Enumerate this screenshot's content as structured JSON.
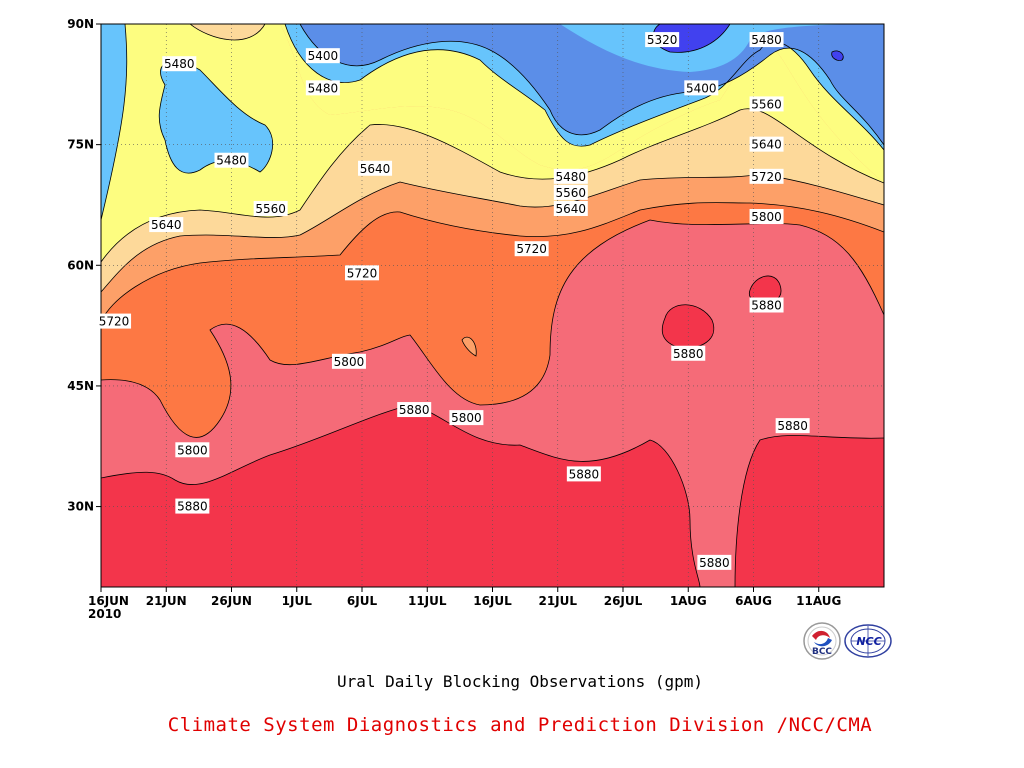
{
  "chart_data": {
    "type": "heatmap",
    "title": "Ural Daily Blocking Observations (gpm)",
    "x_ticks": [
      "16JUN\n2010",
      "21JUN",
      "26JUN",
      "1JUL",
      "6JUL",
      "11JUL",
      "16JUL",
      "21JUL",
      "26JUL",
      "1AUG",
      "6AUG",
      "11AUG"
    ],
    "x_range": [
      "2010-06-16",
      "2010-08-15"
    ],
    "y_ticks": [
      "30N",
      "45N",
      "60N",
      "75N",
      "90N"
    ],
    "y_range": [
      20,
      90
    ],
    "contour_levels": [
      5320,
      5400,
      5480,
      5560,
      5640,
      5720,
      5800,
      5880
    ],
    "level_colors": [
      "#4141ef",
      "#5b8ee8",
      "#67c4fc",
      "#fdfd80",
      "#fdd99a",
      "#fda068",
      "#fd7844",
      "#f56b78",
      "#f3354b"
    ],
    "contour_labels": [
      {
        "text": "5480",
        "date": "2010-06-22",
        "lat": 85
      },
      {
        "text": "5400",
        "date": "2010-07-03",
        "lat": 86
      },
      {
        "text": "5480",
        "date": "2010-07-03",
        "lat": 82
      },
      {
        "text": "5480",
        "date": "2010-06-26",
        "lat": 73
      },
      {
        "text": "5640",
        "date": "2010-07-07",
        "lat": 72
      },
      {
        "text": "5560",
        "date": "2010-06-29",
        "lat": 67
      },
      {
        "text": "5640",
        "date": "2010-06-21",
        "lat": 65
      },
      {
        "text": "5720",
        "date": "2010-07-06",
        "lat": 59
      },
      {
        "text": "5720",
        "date": "2010-06-17",
        "lat": 53
      },
      {
        "text": "5800",
        "date": "2010-07-05",
        "lat": 48
      },
      {
        "text": "5880",
        "date": "2010-07-10",
        "lat": 42
      },
      {
        "text": "5800",
        "date": "2010-07-14",
        "lat": 41
      },
      {
        "text": "5800",
        "date": "2010-06-23",
        "lat": 37
      },
      {
        "text": "5880",
        "date": "2010-06-23",
        "lat": 30
      },
      {
        "text": "5880",
        "date": "2010-07-23",
        "lat": 34
      },
      {
        "text": "5880",
        "date": "2010-08-02",
        "lat": 23
      },
      {
        "text": "5880",
        "date": "2010-07-31",
        "lat": 49
      },
      {
        "text": "5880",
        "date": "2010-08-06",
        "lat": 55
      },
      {
        "text": "5880",
        "date": "2010-08-08",
        "lat": 40
      },
      {
        "text": "5480",
        "date": "2010-07-22",
        "lat": 71
      },
      {
        "text": "5560",
        "date": "2010-07-22",
        "lat": 69
      },
      {
        "text": "5640",
        "date": "2010-07-22",
        "lat": 67
      },
      {
        "text": "5720",
        "date": "2010-07-19",
        "lat": 62
      },
      {
        "text": "5320",
        "date": "2010-07-29",
        "lat": 88
      },
      {
        "text": "5400",
        "date": "2010-08-01",
        "lat": 82
      },
      {
        "text": "5480",
        "date": "2010-08-06",
        "lat": 88
      },
      {
        "text": "5560",
        "date": "2010-08-06",
        "lat": 80
      },
      {
        "text": "5640",
        "date": "2010-08-06",
        "lat": 75
      },
      {
        "text": "5720",
        "date": "2010-08-06",
        "lat": 71
      },
      {
        "text": "5800",
        "date": "2010-08-06",
        "lat": 66
      }
    ]
  },
  "caption": {
    "title": "Ural Daily Blocking Observations (gpm)",
    "credit": "Climate System Diagnostics and Prediction Division /NCC/CMA"
  },
  "logos": {
    "left": "BCC",
    "right": "NCC"
  }
}
